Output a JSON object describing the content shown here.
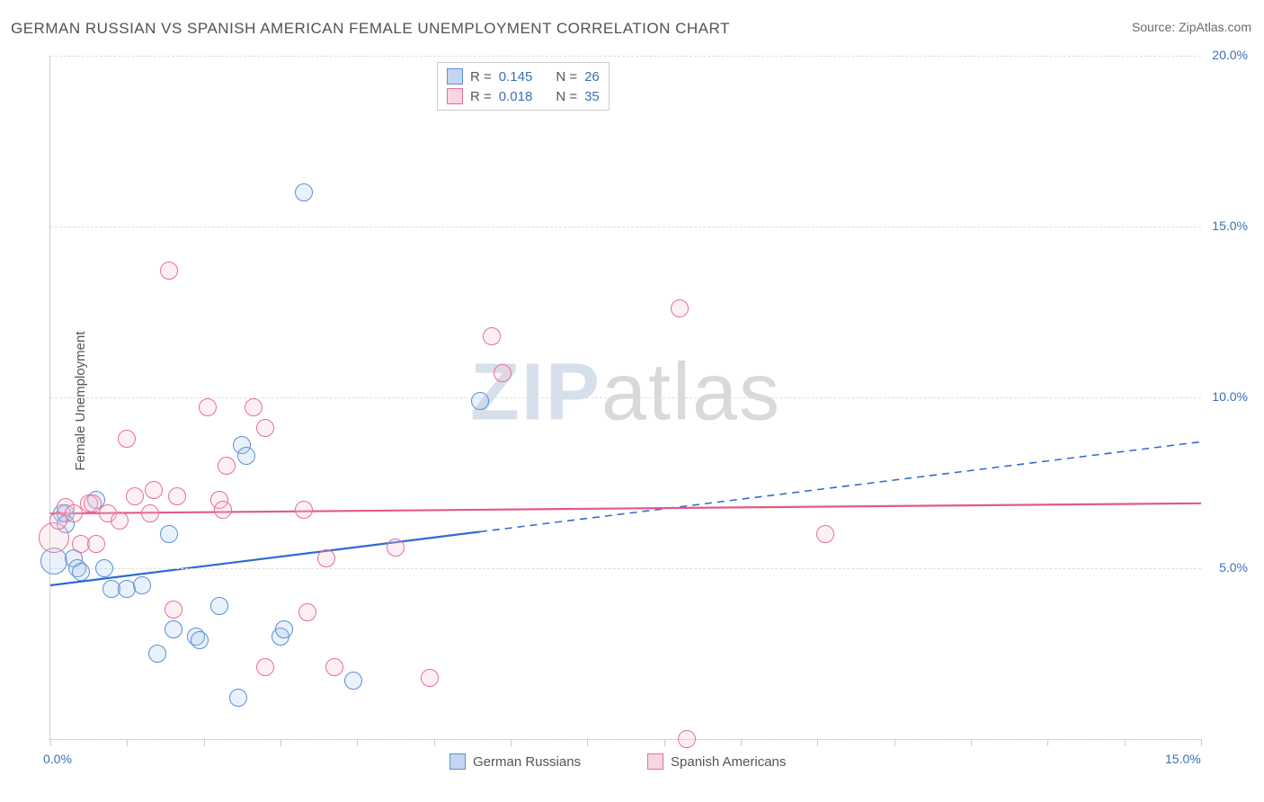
{
  "title": "GERMAN RUSSIAN VS SPANISH AMERICAN FEMALE UNEMPLOYMENT CORRELATION CHART",
  "source_label": "Source: ZipAtlas.com",
  "ylabel": "Female Unemployment",
  "watermark_a": "ZIP",
  "watermark_b": "atlas",
  "chart": {
    "type": "scatter",
    "background_color": "#ffffff",
    "grid_color": "#dddddd",
    "grid_dash": "4,4",
    "axis_color": "#cccccc",
    "xlim": [
      0,
      15
    ],
    "ylim": [
      0,
      20
    ],
    "x_ticks": [
      0,
      1,
      2,
      3,
      4,
      5,
      6,
      7,
      8,
      9,
      10,
      11,
      12,
      13,
      14,
      15
    ],
    "x_tick_labels": {
      "0": "0.0%",
      "15": "15.0%"
    },
    "y_ticks": [
      0,
      5,
      10,
      15,
      20
    ],
    "y_tick_labels": {
      "5": "5.0%",
      "10": "10.0%",
      "15": "15.0%",
      "20": "20.0%"
    },
    "tick_fontsize": 14,
    "tick_color": "#3b6fb6",
    "marker_radius": 9,
    "marker_border_width": 1.2,
    "marker_fill_opacity": 0.25,
    "series": [
      {
        "key": "german_russians",
        "label": "German Russians",
        "color_fill": "#a9c6ec",
        "color_border": "#5c8fd6",
        "trend_color": "#2e6ad1",
        "trend_width": 2.2,
        "trend_y_at_x0": 4.5,
        "trend_y_at_xmax": 8.7,
        "solid_until_x": 5.6,
        "stats_R": "0.145",
        "stats_N": "26",
        "points": [
          {
            "x": 0.05,
            "y": 5.2,
            "r": 14
          },
          {
            "x": 0.15,
            "y": 6.6
          },
          {
            "x": 0.2,
            "y": 6.6
          },
          {
            "x": 0.2,
            "y": 6.3
          },
          {
            "x": 0.3,
            "y": 5.3
          },
          {
            "x": 0.35,
            "y": 5.0
          },
          {
            "x": 0.4,
            "y": 4.9
          },
          {
            "x": 0.6,
            "y": 7.0
          },
          {
            "x": 0.7,
            "y": 5.0
          },
          {
            "x": 0.8,
            "y": 4.4
          },
          {
            "x": 1.0,
            "y": 4.4
          },
          {
            "x": 1.2,
            "y": 4.5
          },
          {
            "x": 1.4,
            "y": 2.5
          },
          {
            "x": 1.55,
            "y": 6.0
          },
          {
            "x": 1.6,
            "y": 3.2
          },
          {
            "x": 1.9,
            "y": 3.0
          },
          {
            "x": 1.95,
            "y": 2.9
          },
          {
            "x": 2.2,
            "y": 3.9
          },
          {
            "x": 2.45,
            "y": 1.2
          },
          {
            "x": 2.5,
            "y": 8.6
          },
          {
            "x": 2.55,
            "y": 8.3
          },
          {
            "x": 3.0,
            "y": 3.0
          },
          {
            "x": 3.05,
            "y": 3.2
          },
          {
            "x": 3.3,
            "y": 16.0
          },
          {
            "x": 3.95,
            "y": 1.7
          },
          {
            "x": 5.6,
            "y": 9.9
          }
        ]
      },
      {
        "key": "spanish_americans",
        "label": "Spanish Americans",
        "color_fill": "#f6c4d2",
        "color_border": "#e66f97",
        "trend_color": "#e15a8a",
        "trend_width": 2.2,
        "trend_y_at_x0": 6.6,
        "trend_y_at_xmax": 6.9,
        "solid_until_x": 15,
        "stats_R": "0.018",
        "stats_N": "35",
        "points": [
          {
            "x": 0.05,
            "y": 5.9,
            "r": 16
          },
          {
            "x": 0.1,
            "y": 6.4
          },
          {
            "x": 0.2,
            "y": 6.8
          },
          {
            "x": 0.3,
            "y": 6.6
          },
          {
            "x": 0.4,
            "y": 5.7
          },
          {
            "x": 0.5,
            "y": 6.9
          },
          {
            "x": 0.55,
            "y": 6.9
          },
          {
            "x": 0.6,
            "y": 5.7
          },
          {
            "x": 0.75,
            "y": 6.6
          },
          {
            "x": 0.9,
            "y": 6.4
          },
          {
            "x": 1.0,
            "y": 8.8
          },
          {
            "x": 1.1,
            "y": 7.1
          },
          {
            "x": 1.3,
            "y": 6.6
          },
          {
            "x": 1.35,
            "y": 7.3
          },
          {
            "x": 1.55,
            "y": 13.7
          },
          {
            "x": 1.6,
            "y": 3.8
          },
          {
            "x": 1.65,
            "y": 7.1
          },
          {
            "x": 2.05,
            "y": 9.7
          },
          {
            "x": 2.2,
            "y": 7.0
          },
          {
            "x": 2.25,
            "y": 6.7
          },
          {
            "x": 2.3,
            "y": 8.0
          },
          {
            "x": 2.65,
            "y": 9.7
          },
          {
            "x": 2.8,
            "y": 2.1
          },
          {
            "x": 2.8,
            "y": 9.1
          },
          {
            "x": 3.3,
            "y": 6.7
          },
          {
            "x": 3.35,
            "y": 3.7
          },
          {
            "x": 3.6,
            "y": 5.3
          },
          {
            "x": 3.7,
            "y": 2.1
          },
          {
            "x": 4.5,
            "y": 5.6
          },
          {
            "x": 4.95,
            "y": 1.8
          },
          {
            "x": 5.75,
            "y": 11.8
          },
          {
            "x": 5.9,
            "y": 10.7
          },
          {
            "x": 8.2,
            "y": 12.6
          },
          {
            "x": 8.3,
            "y": 0.0
          },
          {
            "x": 10.1,
            "y": 6.0
          }
        ]
      }
    ]
  },
  "stats_legend": {
    "r_prefix": "R =",
    "n_prefix": "N ="
  },
  "footer_legend": {
    "a": "German Russians",
    "b": "Spanish Americans"
  }
}
